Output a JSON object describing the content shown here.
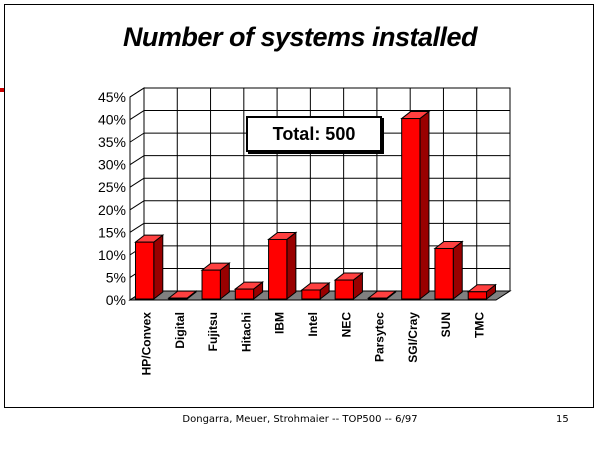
{
  "slide": {
    "title": "Number of systems installed",
    "footer": "Dongarra, Meuer, Strohmaier -- TOP500 -- 6/97",
    "page_number": "15"
  },
  "chart_data": {
    "type": "bar",
    "categories": [
      "HP/Convex",
      "Digital",
      "Fujitsu",
      "Hitachi",
      "IBM",
      "Intel",
      "NEC",
      "Parsytec",
      "SGI/Cray",
      "SUN",
      "TMC"
    ],
    "values": [
      12.6,
      0.2,
      6.4,
      2.2,
      13.2,
      2.0,
      4.2,
      0.2,
      40.0,
      11.2,
      1.6
    ],
    "y_tick_labels": [
      "0%",
      "5%",
      "10%",
      "15%",
      "20%",
      "25%",
      "30%",
      "35%",
      "40%",
      "45%"
    ],
    "ylim": [
      0,
      45
    ],
    "y_unit": "%",
    "grid": true,
    "annotation": "Total: 500",
    "colors": {
      "bar_front": "#ff0000",
      "bar_top": "#ff4040",
      "bar_side": "#990000",
      "floor": "#808080"
    }
  }
}
